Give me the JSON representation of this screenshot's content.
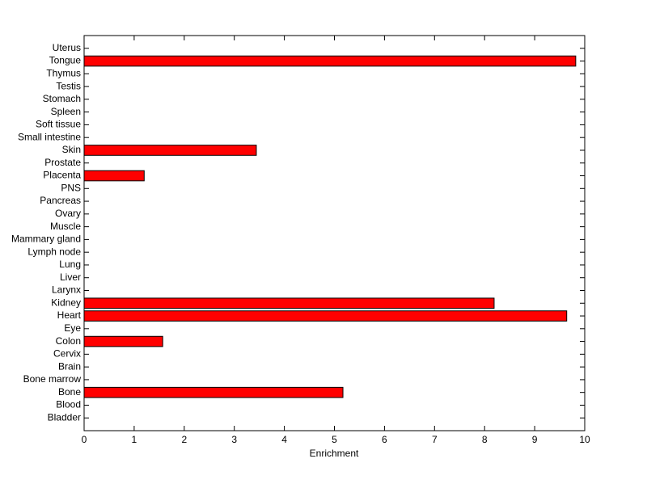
{
  "chart_data": {
    "type": "barh",
    "xlabel": "Enrichment",
    "categories": [
      "Bladder",
      "Blood",
      "Bone",
      "Bone marrow",
      "Brain",
      "Cervix",
      "Colon",
      "Eye",
      "Heart",
      "Kidney",
      "Larynx",
      "Liver",
      "Lung",
      "Lymph node",
      "Mammary gland",
      "Muscle",
      "Ovary",
      "Pancreas",
      "PNS",
      "Placenta",
      "Prostate",
      "Skin",
      "Small intestine",
      "Soft tissue",
      "Spleen",
      "Stomach",
      "Testis",
      "Thymus",
      "Tongue",
      "Uterus"
    ],
    "values": [
      0,
      0,
      5.17,
      0,
      0,
      0,
      1.57,
      0,
      9.64,
      8.19,
      0,
      0,
      0,
      0,
      0,
      0,
      0,
      0,
      0,
      1.2,
      0,
      3.44,
      0,
      0,
      0,
      0,
      0,
      0,
      9.82,
      0
    ],
    "color": "#ff0000",
    "xlim": [
      0,
      10
    ],
    "xticks": [
      0,
      1,
      2,
      3,
      4,
      5,
      6,
      7,
      8,
      9,
      10
    ]
  }
}
